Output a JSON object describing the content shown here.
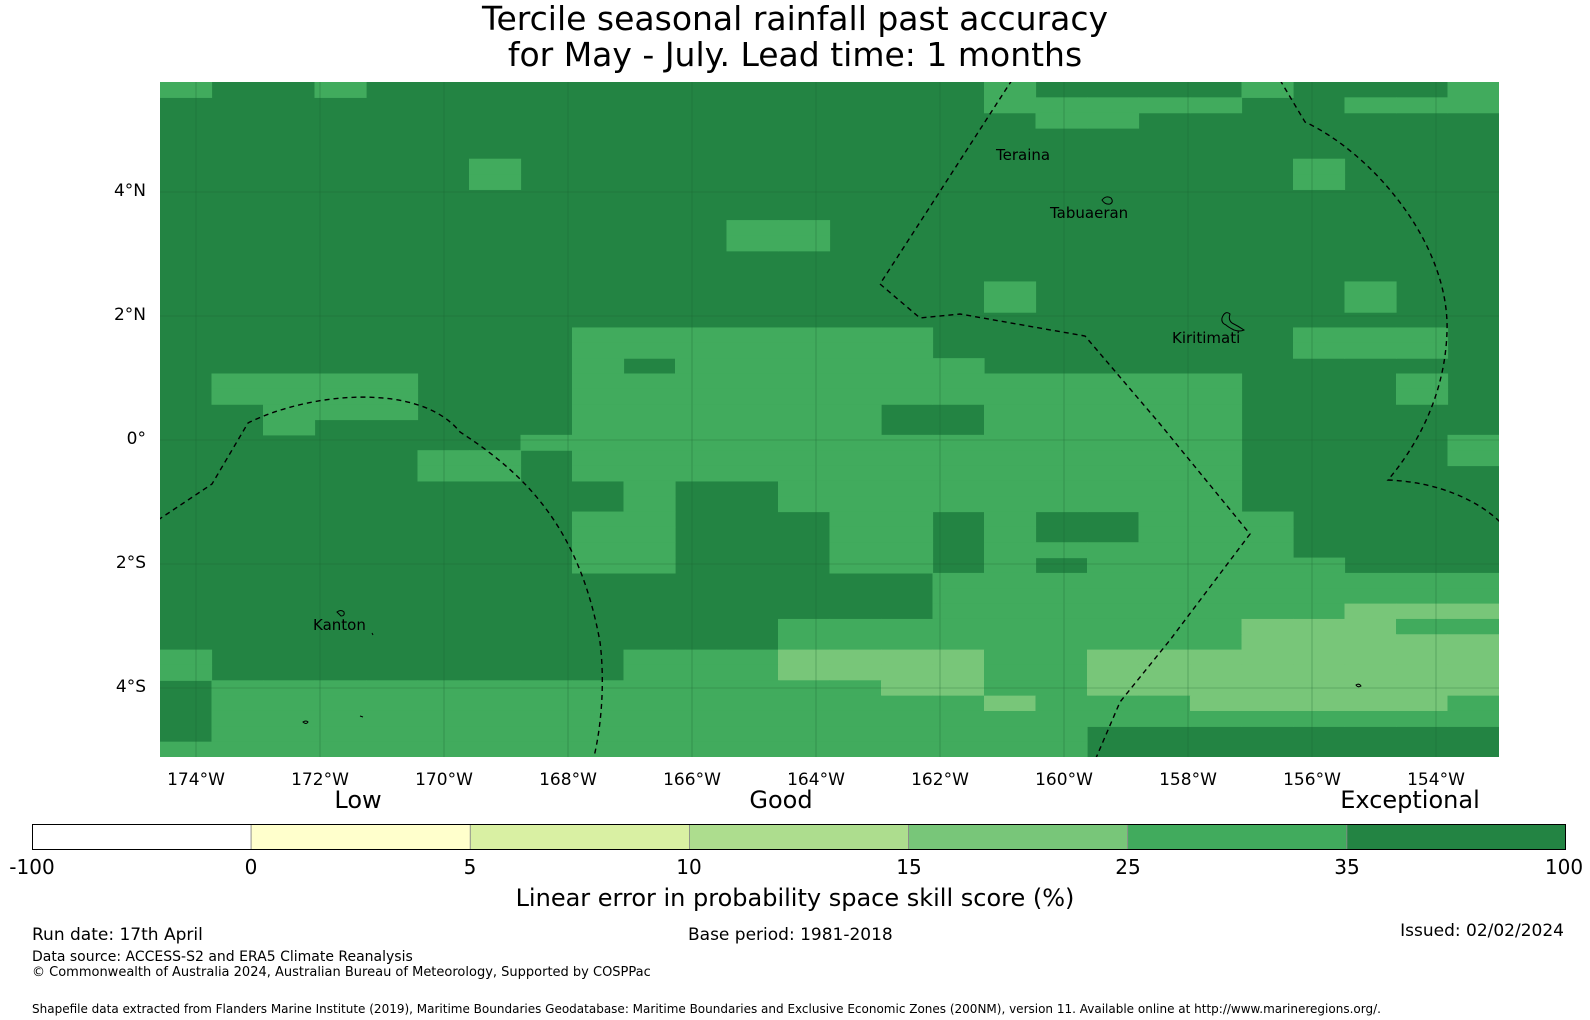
{
  "title": {
    "line1": "Tercile seasonal rainfall past accuracy",
    "line2": "for May - July. Lead time: 1 months"
  },
  "map": {
    "lat_labels": [
      "4°N",
      "2°N",
      "0°",
      "2°S",
      "4°S"
    ],
    "lon_labels": [
      "174°W",
      "172°W",
      "170°W",
      "168°W",
      "166°W",
      "164°W",
      "162°W",
      "160°W",
      "158°W",
      "156°W",
      "154°W"
    ],
    "places": {
      "teraina": "Teraina",
      "tabuaeran": "Tabuaeran",
      "kiritimati": "Kiritimati",
      "kanton": "Kanton"
    },
    "cell_colors": {
      "c1": "#238443",
      "c2": "#41ab5d",
      "c3": "#78c679"
    },
    "grid": [
      "21111112222111111111111111111111111111111112222111111111112211121111112211",
      "1111111111111111111111111111111111111111111122222222222221111112211222221",
      "1111111111111111111111111111111111111111111111112222222111111111111112111112",
      "1111111111111111111111111111111111111111111111111111111111111111111111111112",
      "1111111111111111111111111111111111111111111111111111111111111111111111111112",
      "11111111111111112211111111111111111111111111111111111111111111112211111111111",
      "1111111111111111221111111111111111111111111111111111111111111111221111111111",
      "1111111111111111111111111111111111111111111111111111111111111111111111111111",
      "1111111111111111111111111111111111111111111111111111111111111111111111111111",
      "1111111111111111111111111111111122222211111111111111111111111111111111111111",
      "1111111111111111111111111111111122222211111111111111111111111111111111111111",
      "1111111111111111111111111111111111111111111111111111111111111111111111111111",
      "1111111111111111111111111111111111111111111111111111111111111111111111111111",
      "1111111111111111111111111111111111111111111111112211111111111111111112211111111",
      "1111111111111111111111111111111111111111111111112211111111111111111112211111111",
      "1111111111111111111111111111111111111111111111111111111111111111111111111111",
      "1111111111111111111111122222222222222222222221111111111111111111122222222111111",
      "1111111111111111111111122222222222222222222221111111111111111111122222222111111",
      "1111111111111111111111122211122222222222222221111111111111111111111111111111",
      "1122222222222211111111122222222222222222222222222222222222222222211111111112211111",
      "1122222222222211111111122222222222222222222222222222222222222222211111111112211111",
      "1111122222222211111111122222222222222222222111111122223322222222211111111111111221",
      "1111122211111111111111122222222222222222222111111122223322222222211111111111111221",
      "1111111111111111111122222222222222222222222222222222222222222222211111111111122111",
      "1111111111111112222211122222222222222222222222222222222222222222211111111111122111",
      "1111111111111112222211122222222222222222222222222222222222222222211111111111111111",
      "1111111111111111111111111122222111122222222222222222222222222222111111111111111111",
      "1111111111111111111111111122222111122222222222222222222222222222111111111111111111",
      "1111111111111111111111122222222111111122222221111122111111222222222211111111111111",
      "1111111111111111111111122222222111111122222221111122111111222222222211111111111111",
      "1111111111111111111111122222222111111122222221111122222222222222222221111111111112",
      "1111111111111111111111122222222111111122222221111122112222222222222222221111111112",
      "1111111111111111111111111111111111111111111111122222222222222222222222222222222222",
      "1111111111111111111111111111111111111111111111122222222222222222222222222222222222",
      "1111111111111111111111111111111111111111111111122222222222222222222222233333333222",
      "1111111111111111111111111111111111122222222222222222222222222222333333333332222222",
      "1111111111111111111111111111111111122222222222222222222222222222333333333333333332",
      "2111111111111111111111111112222222223333333333333322222333333333333333333333333332",
      "2111111111111111111111111112222222223333333333333322222333333333333333333333333332",
      "1222222222222222222222222222222222222222223333333322222333333333333333333333333332",
      "1222222222222222222222222222222222222222222222223333222222222333333333333333332222",
      "1222222222222222222222222222222222222222222222222222222222222222222222222222222222",
      "1222222222222222222222222222222222222222222222222222222111111111111111111111111222",
      "2222222222222222222222222222222222222222222222222222222111111111111111111111111222"
    ]
  },
  "colorbar": {
    "categories": [
      "Low",
      "Good",
      "Exceptional"
    ],
    "ticks": [
      "-100",
      "0",
      "5",
      "10",
      "15",
      "25",
      "35",
      "100"
    ],
    "colors": [
      "#ffffff",
      "#ffffcc",
      "#d9f0a3",
      "#addd8e",
      "#78c679",
      "#41ab5d",
      "#238443"
    ],
    "title": "Linear error in probability space skill score (%)"
  },
  "footer": {
    "run_date": "Run date: 17th April",
    "base_period": "Base period: 1981-2018",
    "issued": "Issued: 02/02/2024",
    "data_source": "Data source: ACCESS-S2 and ERA5 Climate Reanalysis",
    "copyright": "© Commonwealth of Australia 2024, Australian Bureau of Meteorology, Supported by COSPPac",
    "shapefile": "Shapefile data extracted from Flanders Marine Institute (2019), Maritime Boundaries Geodatabase: Maritime Boundaries and Exclusive Economic Zones (200NM), version 11. Available online at http://www.marineregions.org/."
  }
}
